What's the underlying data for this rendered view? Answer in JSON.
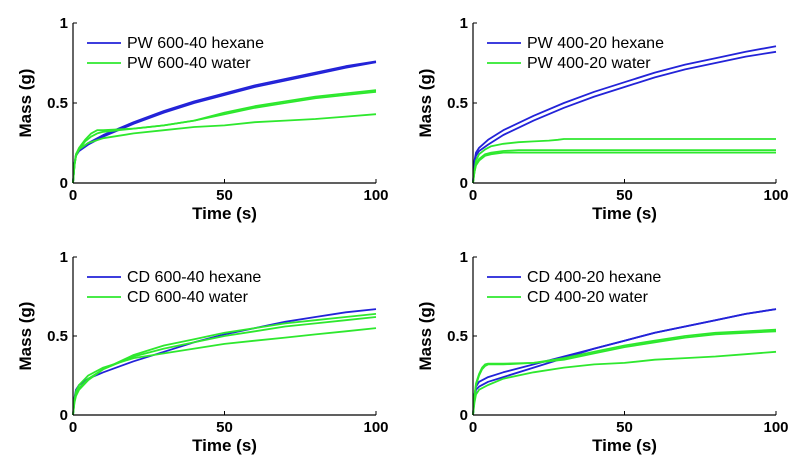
{
  "colors": {
    "hexane": "#2323d8",
    "water": "#2ee82e",
    "axis": "#000000"
  },
  "chart_data": [
    {
      "type": "line",
      "xlabel": "Time (s)",
      "ylabel": "Mass (g)",
      "xlim": [
        0,
        100
      ],
      "ylim": [
        0,
        1
      ],
      "xticks": [
        "0",
        "50",
        "100"
      ],
      "yticks": [
        "0",
        "0.5",
        "1"
      ],
      "legend": "top-left",
      "series": [
        {
          "name": "PW 600-40 hexane",
          "color": "hexane",
          "x": [
            0,
            0.5,
            1,
            2,
            5,
            10,
            20,
            30,
            40,
            50,
            60,
            70,
            80,
            90,
            100
          ],
          "y": [
            0,
            0.12,
            0.18,
            0.21,
            0.25,
            0.3,
            0.38,
            0.45,
            0.51,
            0.56,
            0.61,
            0.65,
            0.69,
            0.73,
            0.76
          ]
        },
        {
          "name": "",
          "color": "hexane",
          "x": [
            0,
            0.5,
            1,
            2,
            5,
            10,
            20,
            30,
            40,
            50,
            60,
            70,
            80,
            90,
            100
          ],
          "y": [
            0,
            0.12,
            0.17,
            0.2,
            0.24,
            0.29,
            0.37,
            0.44,
            0.5,
            0.55,
            0.6,
            0.64,
            0.68,
            0.72,
            0.755
          ]
        },
        {
          "name": "PW 600-40 water",
          "color": "water",
          "x": [
            0,
            0.5,
            1,
            2,
            4,
            6,
            8,
            10,
            20,
            30,
            40,
            50,
            60,
            70,
            80,
            90,
            100
          ],
          "y": [
            0,
            0.12,
            0.18,
            0.22,
            0.27,
            0.31,
            0.33,
            0.33,
            0.34,
            0.36,
            0.39,
            0.44,
            0.48,
            0.51,
            0.54,
            0.56,
            0.58
          ]
        },
        {
          "name": "",
          "color": "water",
          "x": [
            0,
            0.5,
            1,
            2,
            4,
            6,
            8,
            10,
            20,
            30,
            40,
            50,
            60,
            70,
            80,
            90,
            100
          ],
          "y": [
            0,
            0.11,
            0.17,
            0.21,
            0.26,
            0.29,
            0.31,
            0.32,
            0.34,
            0.36,
            0.39,
            0.43,
            0.47,
            0.5,
            0.53,
            0.55,
            0.57
          ]
        },
        {
          "name": "",
          "color": "water",
          "x": [
            0,
            0.5,
            1,
            2,
            5,
            10,
            20,
            30,
            40,
            50,
            60,
            70,
            80,
            90,
            100
          ],
          "y": [
            0,
            0.11,
            0.17,
            0.21,
            0.25,
            0.28,
            0.31,
            0.33,
            0.35,
            0.36,
            0.38,
            0.39,
            0.4,
            0.415,
            0.43
          ]
        }
      ]
    },
    {
      "type": "line",
      "xlabel": "Time (s)",
      "ylabel": "Mass (g)",
      "xlim": [
        0,
        100
      ],
      "ylim": [
        0,
        1
      ],
      "xticks": [
        "0",
        "50",
        "100"
      ],
      "yticks": [
        "0",
        "0.5",
        "1"
      ],
      "legend": "top-left",
      "series": [
        {
          "name": "PW 400-20 hexane",
          "color": "hexane",
          "x": [
            0,
            0.5,
            1,
            2,
            5,
            10,
            20,
            30,
            40,
            50,
            60,
            70,
            80,
            90,
            100
          ],
          "y": [
            0,
            0.14,
            0.19,
            0.22,
            0.27,
            0.33,
            0.42,
            0.5,
            0.57,
            0.63,
            0.69,
            0.74,
            0.78,
            0.82,
            0.855
          ]
        },
        {
          "name": "",
          "color": "hexane",
          "x": [
            0,
            0.5,
            1,
            2,
            5,
            10,
            20,
            30,
            40,
            50,
            60,
            70,
            80,
            90,
            100
          ],
          "y": [
            0,
            0.13,
            0.17,
            0.2,
            0.24,
            0.3,
            0.39,
            0.47,
            0.54,
            0.6,
            0.66,
            0.71,
            0.75,
            0.79,
            0.82
          ]
        },
        {
          "name": "PW 400-20 water",
          "color": "water",
          "x": [
            0,
            0.5,
            1,
            2,
            4,
            6,
            10,
            15,
            20,
            25,
            28,
            30,
            40,
            60,
            80,
            100
          ],
          "y": [
            0,
            0.08,
            0.14,
            0.18,
            0.21,
            0.23,
            0.245,
            0.255,
            0.26,
            0.265,
            0.27,
            0.275,
            0.275,
            0.275,
            0.275,
            0.275
          ]
        },
        {
          "name": "",
          "color": "water",
          "x": [
            0,
            0.5,
            1,
            2,
            4,
            6,
            10,
            15,
            20,
            30,
            50,
            70,
            100
          ],
          "y": [
            0,
            0.07,
            0.12,
            0.15,
            0.18,
            0.19,
            0.2,
            0.205,
            0.205,
            0.205,
            0.205,
            0.205,
            0.205
          ]
        },
        {
          "name": "",
          "color": "water",
          "x": [
            0,
            0.5,
            1,
            2,
            4,
            6,
            10,
            15,
            20,
            30,
            50,
            70,
            100
          ],
          "y": [
            0,
            0.07,
            0.11,
            0.14,
            0.17,
            0.18,
            0.19,
            0.19,
            0.19,
            0.19,
            0.19,
            0.19,
            0.19
          ]
        }
      ]
    },
    {
      "type": "line",
      "xlabel": "Time (s)",
      "ylabel": "Mass (g)",
      "xlim": [
        0,
        100
      ],
      "ylim": [
        0,
        1
      ],
      "xticks": [
        "0",
        "50",
        "100"
      ],
      "yticks": [
        "0",
        "0.5",
        "1"
      ],
      "legend": "top-left",
      "series": [
        {
          "name": "CD 600-40 hexane",
          "color": "hexane",
          "x": [
            0,
            0.5,
            1,
            2,
            5,
            10,
            20,
            30,
            40,
            50,
            60,
            70,
            80,
            90,
            100
          ],
          "y": [
            0,
            0.11,
            0.16,
            0.19,
            0.23,
            0.27,
            0.34,
            0.4,
            0.46,
            0.51,
            0.55,
            0.59,
            0.62,
            0.65,
            0.67
          ]
        },
        {
          "name": "CD 600-40 water",
          "color": "water",
          "x": [
            0,
            0.5,
            1,
            2,
            5,
            10,
            20,
            30,
            40,
            50,
            60,
            70,
            80,
            90,
            100
          ],
          "y": [
            0,
            0.08,
            0.12,
            0.16,
            0.22,
            0.29,
            0.38,
            0.44,
            0.48,
            0.52,
            0.55,
            0.58,
            0.6,
            0.62,
            0.64
          ]
        },
        {
          "name": "",
          "color": "water",
          "x": [
            0,
            0.5,
            1,
            2,
            5,
            10,
            20,
            30,
            40,
            50,
            60,
            70,
            80,
            90,
            100
          ],
          "y": [
            0,
            0.09,
            0.13,
            0.17,
            0.23,
            0.29,
            0.37,
            0.42,
            0.46,
            0.5,
            0.53,
            0.56,
            0.58,
            0.6,
            0.62
          ]
        },
        {
          "name": "",
          "color": "water",
          "x": [
            0,
            0.5,
            1,
            2,
            5,
            10,
            20,
            30,
            40,
            50,
            60,
            70,
            80,
            90,
            100
          ],
          "y": [
            0,
            0.1,
            0.15,
            0.19,
            0.25,
            0.3,
            0.36,
            0.39,
            0.42,
            0.45,
            0.47,
            0.49,
            0.51,
            0.53,
            0.55
          ]
        }
      ]
    },
    {
      "type": "line",
      "xlabel": "Time (s)",
      "ylabel": "Mass (g)",
      "xlim": [
        0,
        100
      ],
      "ylim": [
        0,
        1
      ],
      "xticks": [
        "0",
        "50",
        "100"
      ],
      "yticks": [
        "0",
        "0.5",
        "1"
      ],
      "legend": "top-left",
      "series": [
        {
          "name": "CD 400-20 hexane",
          "color": "hexane",
          "x": [
            0,
            0.5,
            1,
            2,
            5,
            10,
            20,
            30,
            40,
            50,
            60,
            70,
            80,
            90,
            100
          ],
          "y": [
            0,
            0.13,
            0.18,
            0.21,
            0.24,
            0.27,
            0.32,
            0.37,
            0.42,
            0.47,
            0.52,
            0.56,
            0.6,
            0.64,
            0.67
          ]
        },
        {
          "name": "",
          "color": "hexane",
          "x": [
            0,
            0.5,
            1,
            2,
            5,
            10,
            20,
            30,
            40,
            50,
            60,
            70,
            80,
            90,
            100
          ],
          "y": [
            0,
            0.11,
            0.16,
            0.18,
            0.21,
            0.24,
            0.3,
            0.36,
            0.42,
            0.47,
            0.52,
            0.56,
            0.6,
            0.64,
            0.67
          ]
        },
        {
          "name": "CD 400-20 water",
          "color": "water",
          "x": [
            0,
            0.5,
            1,
            2,
            3,
            4,
            5,
            10,
            20,
            30,
            40,
            50,
            60,
            70,
            80,
            90,
            100
          ],
          "y": [
            0,
            0.12,
            0.2,
            0.26,
            0.3,
            0.32,
            0.325,
            0.325,
            0.33,
            0.36,
            0.4,
            0.44,
            0.47,
            0.5,
            0.52,
            0.53,
            0.54
          ]
        },
        {
          "name": "",
          "color": "water",
          "x": [
            0,
            0.5,
            1,
            2,
            3,
            4,
            5,
            10,
            20,
            30,
            40,
            50,
            60,
            70,
            80,
            90,
            100
          ],
          "y": [
            0,
            0.12,
            0.19,
            0.25,
            0.29,
            0.31,
            0.32,
            0.32,
            0.33,
            0.35,
            0.39,
            0.43,
            0.46,
            0.49,
            0.51,
            0.52,
            0.53
          ]
        },
        {
          "name": "",
          "color": "water",
          "x": [
            0,
            0.5,
            1,
            2,
            5,
            10,
            20,
            30,
            40,
            50,
            60,
            70,
            80,
            90,
            100
          ],
          "y": [
            0,
            0.08,
            0.13,
            0.16,
            0.19,
            0.23,
            0.27,
            0.3,
            0.32,
            0.33,
            0.35,
            0.36,
            0.37,
            0.385,
            0.4
          ]
        }
      ]
    }
  ]
}
